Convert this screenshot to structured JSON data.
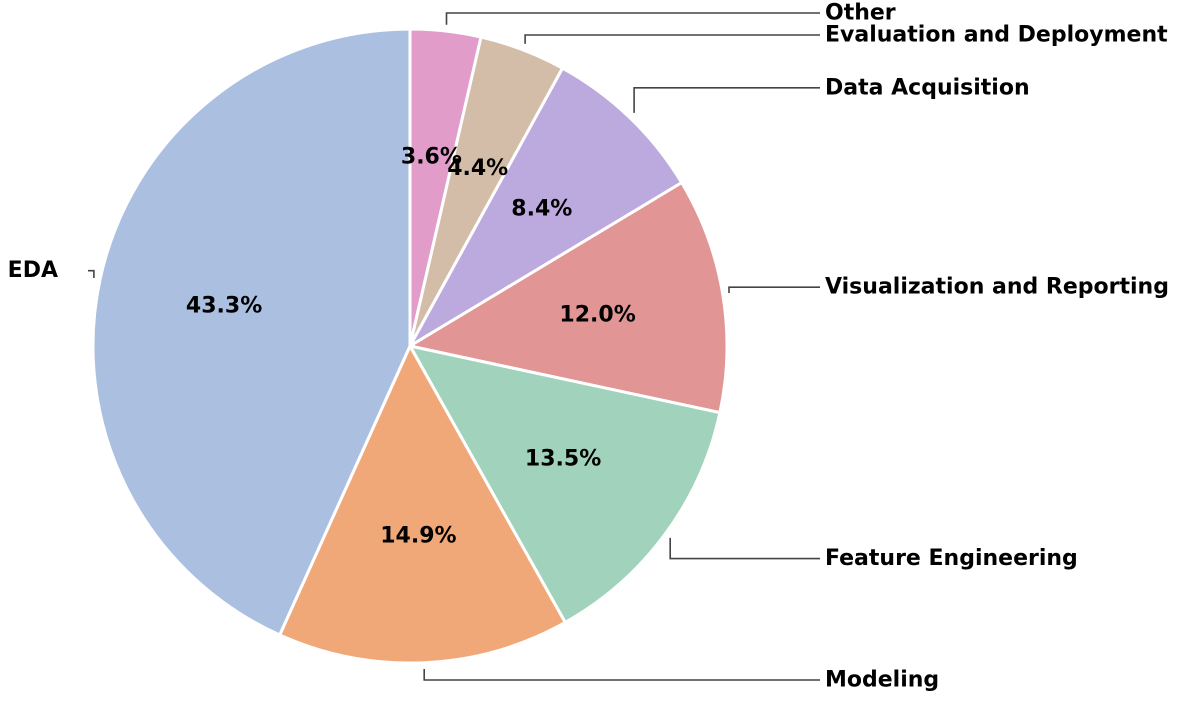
{
  "chart_data": {
    "type": "pie",
    "title": "",
    "start_angle_deg": 90,
    "direction": "clockwise",
    "legend": "none",
    "slices": [
      {
        "label": "Other",
        "value": 3.6,
        "pct_label": "3.6%",
        "color": "#e19cc9"
      },
      {
        "label": "Evaluation and Deployment",
        "value": 4.4,
        "pct_label": "4.4%",
        "color": "#d4bda8"
      },
      {
        "label": "Data Acquisition",
        "value": 8.4,
        "pct_label": "8.4%",
        "color": "#bcaade"
      },
      {
        "label": "Visualization and Reporting",
        "value": 12.0,
        "pct_label": "12.0%",
        "color": "#e19594"
      },
      {
        "label": "Feature Engineering",
        "value": 13.5,
        "pct_label": "13.5%",
        "color": "#a1d3bc"
      },
      {
        "label": "Modeling",
        "value": 14.9,
        "pct_label": "14.9%",
        "color": "#f1a878"
      },
      {
        "label": "EDA",
        "value": 43.3,
        "pct_label": "43.3%",
        "color": "#abbfe1"
      }
    ]
  }
}
